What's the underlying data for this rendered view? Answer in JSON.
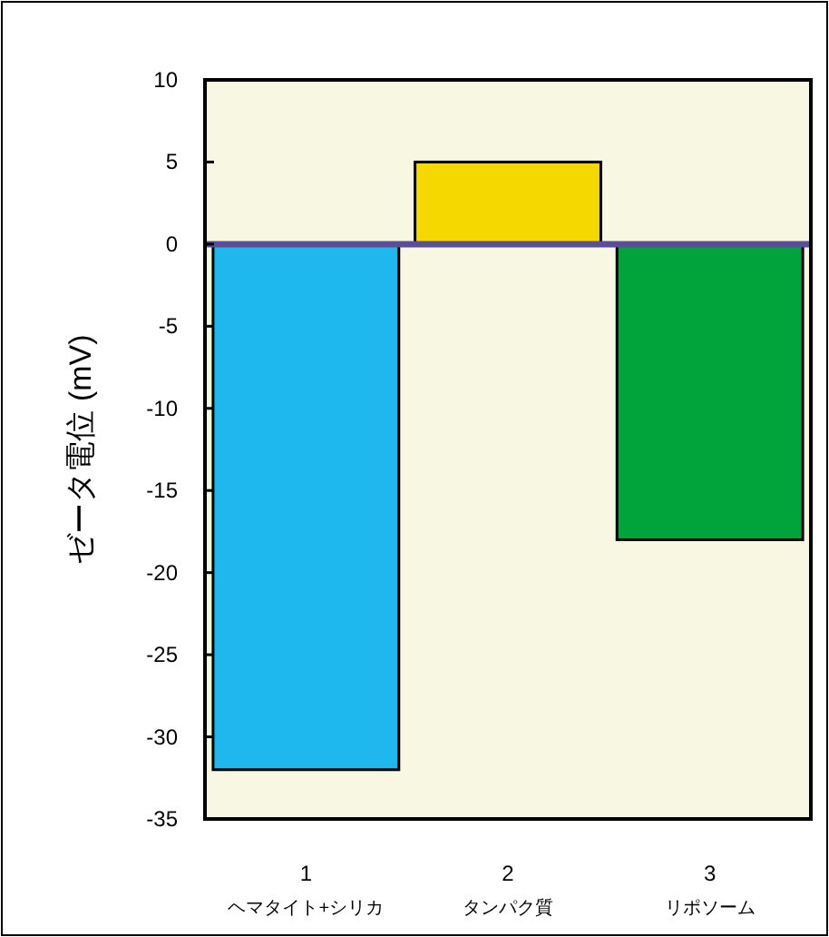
{
  "chart_data": {
    "type": "bar",
    "ylabel": "ゼータ電位 (mV)",
    "categories": [
      "1\nヘマタイト+シリカ",
      "2\nタンパク質",
      "3\nリポソーム"
    ],
    "values": [
      -32,
      5,
      -18
    ],
    "colors": [
      "#1fb8ee",
      "#f5d800",
      "#00a43b"
    ],
    "ylim": [
      -35,
      10
    ],
    "yticks": [
      -35,
      -30,
      -25,
      -20,
      -15,
      -10,
      -5,
      0,
      5,
      10
    ],
    "ref_lines": [
      {
        "axis": "y",
        "value": 0,
        "color": "#5a4f96"
      }
    ]
  }
}
